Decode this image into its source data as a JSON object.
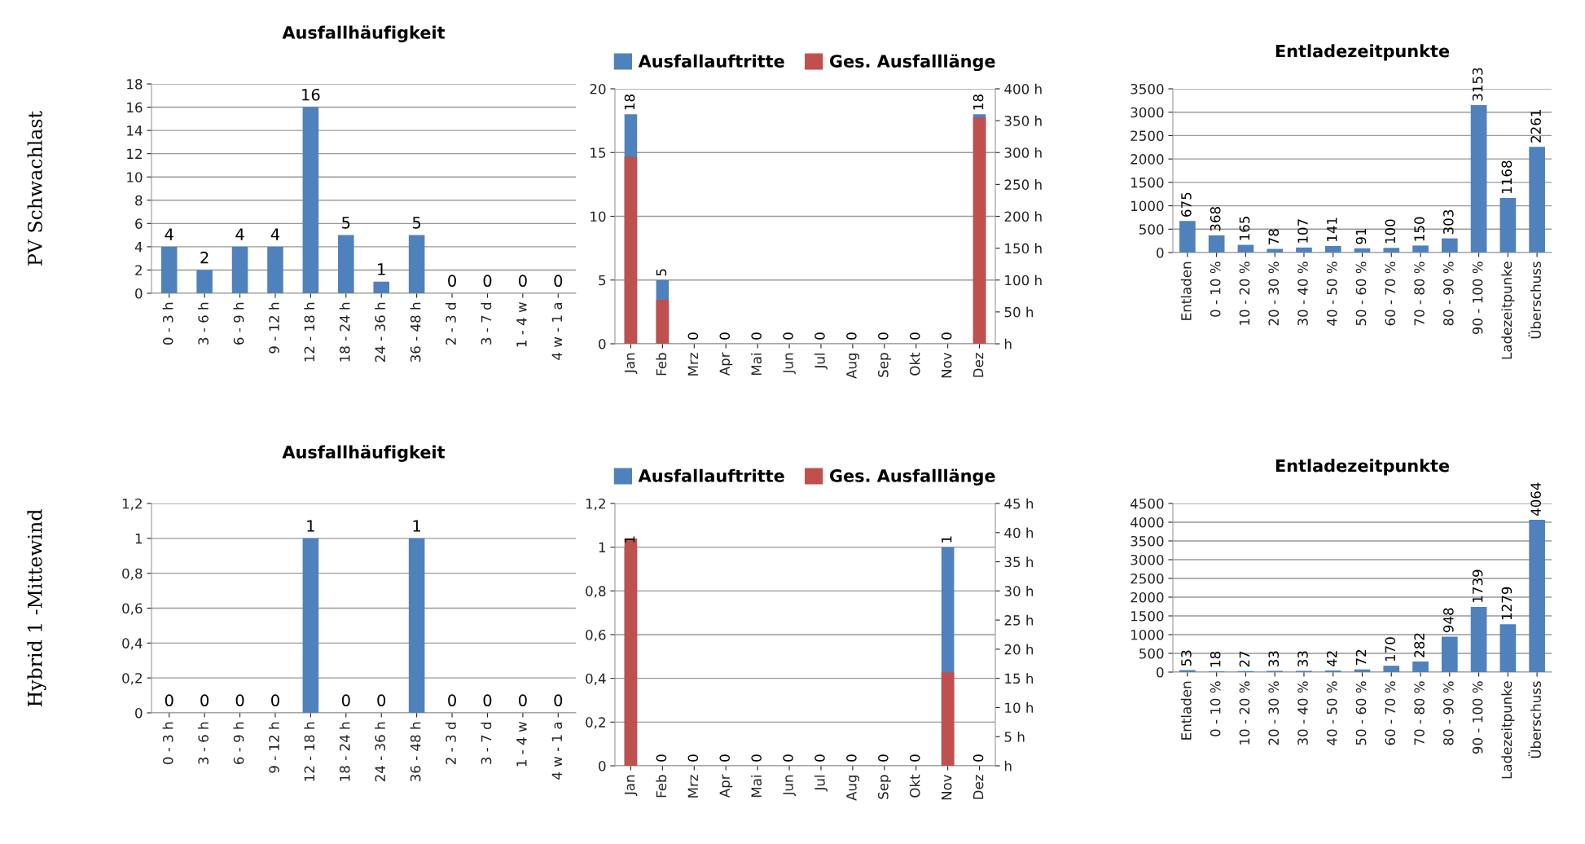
{
  "chart_data": [
    {
      "type": "bar",
      "title": "Ausfallhäufigkeit",
      "annotations": [
        "PV Schwachlast"
      ],
      "categories": [
        "0 - 3 h",
        "3 - 6 h",
        "6 - 9 h",
        "9 - 12 h",
        "12 - 18 h",
        "18 - 24 h",
        "24 - 36 h",
        "36 - 48 h",
        "2 - 3 d",
        "3 - 7 d",
        "1 - 4 w",
        "4 w - 1 a"
      ],
      "values": [
        4,
        2,
        4,
        4,
        16,
        5,
        1,
        5,
        0,
        0,
        0,
        0
      ],
      "color": "#4f81bd",
      "ylim": [
        0,
        18
      ],
      "yticks": [
        0,
        2,
        4,
        6,
        8,
        10,
        12,
        14,
        16,
        18
      ],
      "grid": "y",
      "data_labels": true
    },
    {
      "type": "bar",
      "legend": "top",
      "categories": [
        "Jan",
        "Feb",
        "Mrz",
        "Apr",
        "Mai",
        "Jun",
        "Jul",
        "Aug",
        "Sep",
        "Okt",
        "Nov",
        "Dez"
      ],
      "series": [
        {
          "name": "Ausfallauftritte",
          "color": "#4f81bd",
          "values": [
            18,
            5,
            0,
            0,
            0,
            0,
            0,
            0,
            0,
            0,
            0,
            18
          ],
          "value_labels": [
            "18",
            "5",
            "0",
            "0",
            "0",
            "0",
            "0",
            "0",
            "0",
            "0",
            "0",
            "18"
          ]
        },
        {
          "name": "Ges. Ausfalllänge",
          "color": "#c0504d",
          "axis": "y2",
          "values": [
            293,
            69,
            0,
            0,
            0,
            0,
            0,
            0,
            0,
            0,
            0,
            355
          ]
        }
      ],
      "ylim": [
        0,
        20
      ],
      "yticks": [
        0,
        5,
        10,
        15,
        20
      ],
      "y2lim": [
        0,
        400
      ],
      "y2ticks": [
        {
          "value": 0,
          "label": "h"
        },
        {
          "value": 50,
          "label": "50 h"
        },
        {
          "value": 100,
          "label": "100 h"
        },
        {
          "value": 150,
          "label": "150 h"
        },
        {
          "value": 200,
          "label": "200 h"
        },
        {
          "value": 250,
          "label": "250 h"
        },
        {
          "value": 300,
          "label": "300 h"
        },
        {
          "value": 350,
          "label": "350 h"
        },
        {
          "value": 400,
          "label": "400 h"
        }
      ],
      "grid": "y"
    },
    {
      "type": "bar",
      "title": "Entladezeitpunkte",
      "categories": [
        "Entladen",
        "0 - 10 %",
        "10 - 20 %",
        "20 - 30 %",
        "30 - 40 %",
        "40 - 50 %",
        "50 - 60 %",
        "60 - 70 %",
        "70 - 80 %",
        "80 - 90 %",
        "90 - 100 %",
        "Ladezeitpunke",
        "Überschuss"
      ],
      "values": [
        675,
        368,
        165,
        78,
        107,
        141,
        91,
        100,
        150,
        303,
        3153,
        1168,
        2261
      ],
      "color": "#4f81bd",
      "ylim": [
        0,
        3500
      ],
      "yticks": [
        0,
        500,
        1000,
        1500,
        2000,
        2500,
        3000,
        3500
      ],
      "grid": "y",
      "data_labels": true
    },
    {
      "type": "bar",
      "title": "Ausfallhäufigkeit",
      "annotations": [
        "Hybrid 1 -Mittewind"
      ],
      "categories": [
        "0 - 3 h",
        "3 - 6 h",
        "6 - 9 h",
        "9 - 12 h",
        "12 - 18 h",
        "18 - 24 h",
        "24 - 36 h",
        "36 - 48 h",
        "2 - 3 d",
        "3 - 7 d",
        "1 - 4 w",
        "4 w - 1 a"
      ],
      "values": [
        0,
        0,
        0,
        0,
        1,
        0,
        0,
        1,
        0,
        0,
        0,
        0
      ],
      "color": "#4f81bd",
      "ylim": [
        0,
        1.2
      ],
      "yticks": [
        0,
        {
          "value": 0.2,
          "label": "0,2"
        },
        {
          "value": 0.4,
          "label": "0,4"
        },
        {
          "value": 0.6,
          "label": "0,6"
        },
        {
          "value": 0.8,
          "label": "0,8"
        },
        1,
        {
          "value": 1.2,
          "label": "1,2"
        }
      ],
      "grid": "y",
      "data_labels": true
    },
    {
      "type": "bar",
      "legend": "top",
      "categories": [
        "Jan",
        "Feb",
        "Mrz",
        "Apr",
        "Mai",
        "Jun",
        "Jul",
        "Aug",
        "Sep",
        "Okt",
        "Nov",
        "Dez"
      ],
      "series": [
        {
          "name": "Ausfallauftritte",
          "color": "#4f81bd",
          "values": [
            1,
            0,
            0,
            0,
            0,
            0,
            0,
            0,
            0,
            0,
            1,
            0
          ],
          "value_labels": [
            "1",
            "0",
            "0",
            "0",
            "0",
            "0",
            "0",
            "0",
            "0",
            "0",
            "1",
            "0"
          ]
        },
        {
          "name": "Ges. Ausfalllänge",
          "color": "#c0504d",
          "axis": "y2",
          "values": [
            39,
            0,
            0,
            0,
            0,
            0,
            0,
            0,
            0,
            0,
            16,
            0
          ]
        }
      ],
      "ylim": [
        0,
        1.2
      ],
      "yticks": [
        0,
        {
          "value": 0.2,
          "label": "0,2"
        },
        {
          "value": 0.4,
          "label": "0,4"
        },
        {
          "value": 0.6,
          "label": "0,6"
        },
        {
          "value": 0.8,
          "label": "0,8"
        },
        1,
        {
          "value": 1.2,
          "label": "1,2"
        }
      ],
      "y2lim": [
        0,
        45
      ],
      "y2ticks": [
        {
          "value": 0,
          "label": "h"
        },
        {
          "value": 5,
          "label": "5 h"
        },
        {
          "value": 10,
          "label": "10 h"
        },
        {
          "value": 15,
          "label": "15 h"
        },
        {
          "value": 20,
          "label": "20 h"
        },
        {
          "value": 25,
          "label": "25 h"
        },
        {
          "value": 30,
          "label": "30 h"
        },
        {
          "value": 35,
          "label": "35 h"
        },
        {
          "value": 40,
          "label": "40 h"
        },
        {
          "value": 45,
          "label": "45 h"
        }
      ],
      "grid": "y"
    },
    {
      "type": "bar",
      "title": "Entladezeitpunkte",
      "categories": [
        "Entladen",
        "0 - 10 %",
        "10 - 20 %",
        "20 - 30 %",
        "30 - 40 %",
        "40 - 50 %",
        "50 - 60 %",
        "60 - 70 %",
        "70 - 80 %",
        "80 - 90 %",
        "90 - 100 %",
        "Ladezeitpunke",
        "Überschuss"
      ],
      "values": [
        53,
        18,
        27,
        33,
        33,
        42,
        72,
        170,
        282,
        948,
        1739,
        1279,
        4064
      ],
      "color": "#4f81bd",
      "ylim": [
        0,
        4500
      ],
      "yticks": [
        0,
        500,
        1000,
        1500,
        2000,
        2500,
        3000,
        3500,
        4000,
        4500
      ],
      "grid": "y",
      "data_labels": true
    }
  ]
}
